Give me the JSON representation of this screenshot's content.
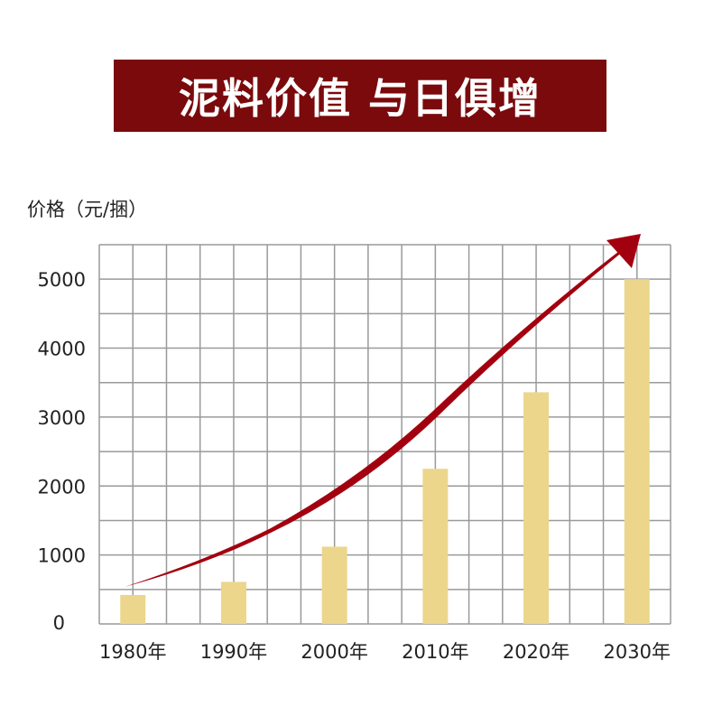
{
  "chart_data": {
    "type": "bar",
    "title": "泥料价值 与日俱增",
    "ylabel": "价格（元/捆）",
    "xlabel": "",
    "categories": [
      "1980年",
      "1990年",
      "2000年",
      "2010年",
      "2020年",
      "2030年"
    ],
    "values": [
      420,
      610,
      1120,
      2250,
      3360,
      5000
    ],
    "ylim": [
      0,
      5500
    ],
    "yticks": [
      0,
      1000,
      2000,
      3000,
      4000,
      5000
    ],
    "grid": true,
    "trend_arrow": true,
    "colors": {
      "bar": "#ecd68b",
      "arrow": "#a3000f",
      "banner": "#7a0a0c",
      "grid": "#9a9a9a"
    }
  }
}
